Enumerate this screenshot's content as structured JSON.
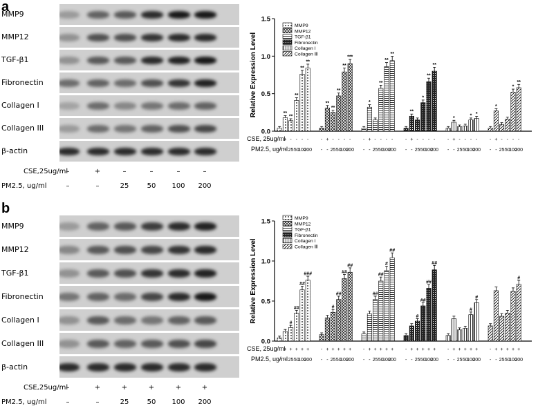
{
  "panels": [
    {
      "letter": "a",
      "blot": {
        "rows": [
          {
            "label": "MMP9",
            "bands": [
              0.25,
              0.55,
              0.6,
              0.85,
              0.95,
              0.95
            ]
          },
          {
            "label": "MMP12",
            "bands": [
              0.3,
              0.65,
              0.65,
              0.8,
              0.85,
              0.85
            ]
          },
          {
            "label": "TGF-β1",
            "bands": [
              0.3,
              0.6,
              0.6,
              0.85,
              0.9,
              0.95
            ]
          },
          {
            "label": "Fibronectin",
            "bands": [
              0.5,
              0.55,
              0.5,
              0.65,
              0.8,
              0.9
            ]
          },
          {
            "label": "Collagen I",
            "bands": [
              0.2,
              0.5,
              0.35,
              0.45,
              0.5,
              0.55
            ]
          },
          {
            "label": "Collagen III",
            "bands": [
              0.25,
              0.5,
              0.45,
              0.55,
              0.65,
              0.7
            ]
          },
          {
            "label": "β-actin",
            "bands": [
              0.85,
              0.85,
              0.85,
              0.85,
              0.85,
              0.85
            ]
          }
        ],
        "conditions": [
          {
            "label": "CSE,25ug/ml",
            "values": [
              "–",
              "+",
              "–",
              "–",
              "–",
              "–"
            ]
          },
          {
            "label": "PM2.5, ug/ml",
            "values": [
              "–",
              "–",
              "25",
              "50",
              "100",
              "200"
            ]
          }
        ]
      },
      "chart_data": {
        "type": "bar",
        "ylabel": "Relative Expression Level",
        "ylim": [
          0,
          1.5
        ],
        "yticks": [
          "0.0",
          "0.5",
          "1.0",
          "1.5"
        ],
        "legend_position": "top-left",
        "legend": [
          "MMP9",
          "MMP12",
          "TGF-β1",
          "Fibronectin",
          "Collagen I",
          "Collagen Ⅲ"
        ],
        "categories": [
          "-",
          "+",
          "-",
          "-",
          "-",
          "-"
        ],
        "series": [
          {
            "name": "MMP9",
            "values": [
              0.04,
              0.18,
              0.14,
              0.41,
              0.76,
              0.84
            ],
            "marks": [
              "",
              "**",
              "**",
              "**",
              "**",
              "**"
            ]
          },
          {
            "name": "MMP12",
            "values": [
              0.04,
              0.31,
              0.25,
              0.47,
              0.79,
              0.9
            ],
            "marks": [
              "",
              "**",
              "**",
              "**",
              "**",
              "***"
            ]
          },
          {
            "name": "TGF-β1",
            "values": [
              0.04,
              0.32,
              0.15,
              0.57,
              0.86,
              0.94
            ],
            "marks": [
              "",
              "*",
              "",
              "**",
              "**",
              "**"
            ]
          },
          {
            "name": "Fibronectin",
            "values": [
              0.04,
              0.2,
              0.15,
              0.38,
              0.66,
              0.8
            ],
            "marks": [
              "",
              "**",
              "",
              "*",
              "**",
              "**"
            ]
          },
          {
            "name": "Collagen I",
            "values": [
              0.04,
              0.12,
              0.06,
              0.07,
              0.15,
              0.17
            ],
            "marks": [
              "",
              "*",
              "",
              "",
              "*",
              "*"
            ]
          },
          {
            "name": "Collagen Ⅲ",
            "values": [
              0.04,
              0.27,
              0.09,
              0.16,
              0.52,
              0.58
            ],
            "marks": [
              "",
              "*",
              "",
              "",
              "*",
              "**"
            ]
          }
        ],
        "rows": [
          {
            "label": "CSE, 25ug/ml",
            "values": [
              "-",
              "+",
              "-",
              "-",
              "-",
              "-"
            ]
          },
          {
            "label": "PM2.5, ug/ml",
            "values": [
              "-",
              "-",
              "25",
              "50",
              "100",
              "200"
            ]
          }
        ]
      }
    },
    {
      "letter": "b",
      "blot": {
        "rows": [
          {
            "label": "MMP9",
            "bands": [
              0.25,
              0.55,
              0.6,
              0.75,
              0.85,
              0.9
            ]
          },
          {
            "label": "MMP12",
            "bands": [
              0.35,
              0.6,
              0.65,
              0.7,
              0.8,
              0.85
            ]
          },
          {
            "label": "TGF-β1",
            "bands": [
              0.3,
              0.6,
              0.65,
              0.8,
              0.85,
              0.9
            ]
          },
          {
            "label": "Fibronectin",
            "bands": [
              0.45,
              0.55,
              0.5,
              0.7,
              0.85,
              0.95
            ]
          },
          {
            "label": "Collagen I",
            "bands": [
              0.3,
              0.6,
              0.5,
              0.45,
              0.55,
              0.6
            ]
          },
          {
            "label": "Collagen III",
            "bands": [
              0.3,
              0.6,
              0.55,
              0.6,
              0.65,
              0.7
            ]
          },
          {
            "label": "β-actin",
            "bands": [
              0.85,
              0.85,
              0.85,
              0.85,
              0.85,
              0.85
            ]
          }
        ],
        "conditions": [
          {
            "label": "CSE,25ug/ml",
            "values": [
              "–",
              "+",
              "+",
              "+",
              "+",
              "+"
            ]
          },
          {
            "label": "PM2.5, ug/ml",
            "values": [
              "–",
              "–",
              "25",
              "50",
              "100",
              "200"
            ]
          }
        ]
      },
      "chart_data": {
        "type": "bar",
        "ylabel": "Relative Expression Level",
        "ylim": [
          0,
          1.5
        ],
        "yticks": [
          "0.0",
          "0.5",
          "1.0",
          "1.5"
        ],
        "legend_position": "top-left",
        "legend": [
          "MMP9",
          "MMP12",
          "TGF-β1",
          "Fibronectin",
          "Collagen I",
          "Collagen Ⅲ"
        ],
        "categories": [
          "-",
          "+",
          "+",
          "+",
          "+",
          "+"
        ],
        "series": [
          {
            "name": "MMP9",
            "values": [
              0.04,
              0.12,
              0.17,
              0.35,
              0.64,
              0.76
            ],
            "marks": [
              "",
              "",
              "#",
              "##",
              "##",
              "###"
            ]
          },
          {
            "name": "MMP12",
            "values": [
              0.08,
              0.29,
              0.36,
              0.52,
              0.78,
              0.86
            ],
            "marks": [
              "",
              "",
              "#",
              "##",
              "##",
              "##"
            ]
          },
          {
            "name": "TGF-β1",
            "values": [
              0.09,
              0.34,
              0.52,
              0.75,
              0.88,
              1.04
            ],
            "marks": [
              "",
              "",
              "##",
              "##",
              "#",
              "##"
            ]
          },
          {
            "name": "Fibronectin",
            "values": [
              0.07,
              0.19,
              0.25,
              0.44,
              0.66,
              0.89
            ],
            "marks": [
              "",
              "",
              "#",
              "##",
              "##",
              "##"
            ]
          },
          {
            "name": "Collagen I",
            "values": [
              0.07,
              0.28,
              0.14,
              0.16,
              0.33,
              0.48
            ],
            "marks": [
              "",
              "",
              "",
              "",
              "#",
              "#"
            ]
          },
          {
            "name": "Collagen Ⅲ",
            "values": [
              0.19,
              0.63,
              0.31,
              0.35,
              0.62,
              0.71
            ],
            "marks": [
              "",
              "",
              "",
              "",
              "",
              "#"
            ]
          }
        ],
        "rows": [
          {
            "label": "CSE, 25ug/ml",
            "values": [
              "-",
              "+",
              "+",
              "+",
              "+",
              "+"
            ]
          },
          {
            "label": "PM2.5, ug/ml",
            "values": [
              "-",
              "-",
              "25",
              "50",
              "100",
              "200"
            ]
          }
        ]
      }
    }
  ]
}
